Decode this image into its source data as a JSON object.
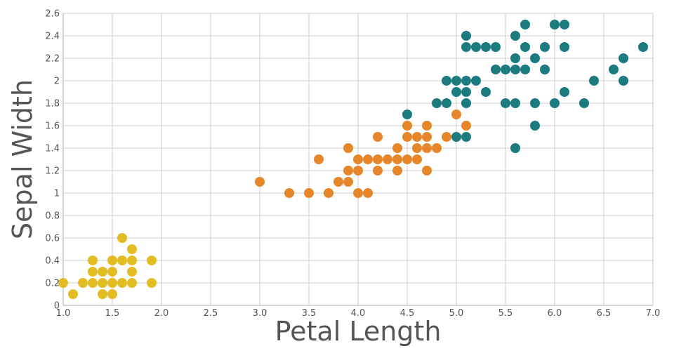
{
  "chart_data": {
    "type": "scatter",
    "xlabel": "Petal Length",
    "ylabel": "Sepal Width",
    "xlim": [
      1.0,
      7.0
    ],
    "ylim": [
      0,
      2.6
    ],
    "x_ticks": [
      "1.0",
      "1.5",
      "2.0",
      "2.5",
      "3.0",
      "3.5",
      "4.0",
      "4.5",
      "5.0",
      "5.5",
      "6.0",
      "6.5",
      "7.0"
    ],
    "y_ticks": [
      "0",
      "0.2",
      "0.4",
      "0.6",
      "0.8",
      "1",
      "1.2",
      "1.4",
      "1.6",
      "1.8",
      "2",
      "2.2",
      "2.4",
      "2.6"
    ],
    "grid": true,
    "legend": "none",
    "series": [
      {
        "color": "#e3bb23",
        "points": [
          [
            1.0,
            0.2
          ],
          [
            1.1,
            0.1
          ],
          [
            1.2,
            0.2
          ],
          [
            1.3,
            0.2
          ],
          [
            1.3,
            0.3
          ],
          [
            1.3,
            0.4
          ],
          [
            1.4,
            0.1
          ],
          [
            1.4,
            0.2
          ],
          [
            1.4,
            0.3
          ],
          [
            1.5,
            0.1
          ],
          [
            1.5,
            0.2
          ],
          [
            1.5,
            0.3
          ],
          [
            1.5,
            0.4
          ],
          [
            1.6,
            0.2
          ],
          [
            1.6,
            0.4
          ],
          [
            1.6,
            0.6
          ],
          [
            1.7,
            0.2
          ],
          [
            1.7,
            0.3
          ],
          [
            1.7,
            0.4
          ],
          [
            1.7,
            0.5
          ],
          [
            1.9,
            0.2
          ],
          [
            1.9,
            0.4
          ]
        ]
      },
      {
        "color": "#e6862b",
        "points": [
          [
            3.0,
            1.1
          ],
          [
            3.3,
            1.0
          ],
          [
            3.5,
            1.0
          ],
          [
            3.6,
            1.3
          ],
          [
            3.7,
            1.0
          ],
          [
            3.8,
            1.1
          ],
          [
            3.9,
            1.1
          ],
          [
            3.9,
            1.2
          ],
          [
            3.9,
            1.4
          ],
          [
            4.0,
            1.0
          ],
          [
            4.0,
            1.2
          ],
          [
            4.0,
            1.3
          ],
          [
            4.1,
            1.0
          ],
          [
            4.1,
            1.3
          ],
          [
            4.2,
            1.2
          ],
          [
            4.2,
            1.3
          ],
          [
            4.2,
            1.5
          ],
          [
            4.3,
            1.3
          ],
          [
            4.4,
            1.2
          ],
          [
            4.4,
            1.3
          ],
          [
            4.4,
            1.4
          ],
          [
            4.5,
            1.3
          ],
          [
            4.5,
            1.5
          ],
          [
            4.5,
            1.6
          ],
          [
            4.6,
            1.3
          ],
          [
            4.6,
            1.4
          ],
          [
            4.6,
            1.5
          ],
          [
            4.7,
            1.2
          ],
          [
            4.7,
            1.4
          ],
          [
            4.7,
            1.5
          ],
          [
            4.7,
            1.6
          ],
          [
            4.8,
            1.4
          ],
          [
            4.9,
            1.5
          ],
          [
            5.0,
            1.7
          ],
          [
            5.1,
            1.6
          ]
        ]
      },
      {
        "color": "#1b7b7e",
        "points": [
          [
            4.5,
            1.7
          ],
          [
            4.8,
            1.8
          ],
          [
            4.9,
            1.8
          ],
          [
            4.9,
            2.0
          ],
          [
            5.0,
            1.5
          ],
          [
            5.0,
            1.9
          ],
          [
            5.0,
            2.0
          ],
          [
            5.1,
            1.5
          ],
          [
            5.1,
            1.8
          ],
          [
            5.1,
            1.9
          ],
          [
            5.1,
            2.0
          ],
          [
            5.1,
            2.3
          ],
          [
            5.1,
            2.4
          ],
          [
            5.2,
            2.0
          ],
          [
            5.2,
            2.3
          ],
          [
            5.3,
            1.9
          ],
          [
            5.3,
            2.3
          ],
          [
            5.4,
            2.1
          ],
          [
            5.4,
            2.3
          ],
          [
            5.5,
            1.8
          ],
          [
            5.5,
            2.1
          ],
          [
            5.6,
            1.4
          ],
          [
            5.6,
            1.8
          ],
          [
            5.6,
            2.1
          ],
          [
            5.6,
            2.2
          ],
          [
            5.6,
            2.4
          ],
          [
            5.7,
            2.1
          ],
          [
            5.7,
            2.3
          ],
          [
            5.7,
            2.5
          ],
          [
            5.8,
            1.6
          ],
          [
            5.8,
            1.8
          ],
          [
            5.8,
            2.2
          ],
          [
            5.9,
            2.1
          ],
          [
            5.9,
            2.3
          ],
          [
            6.0,
            1.8
          ],
          [
            6.0,
            2.5
          ],
          [
            6.1,
            1.9
          ],
          [
            6.1,
            2.3
          ],
          [
            6.1,
            2.5
          ],
          [
            6.3,
            1.8
          ],
          [
            6.4,
            2.0
          ],
          [
            6.6,
            2.1
          ],
          [
            6.7,
            2.0
          ],
          [
            6.7,
            2.2
          ],
          [
            6.9,
            2.3
          ]
        ]
      }
    ]
  }
}
